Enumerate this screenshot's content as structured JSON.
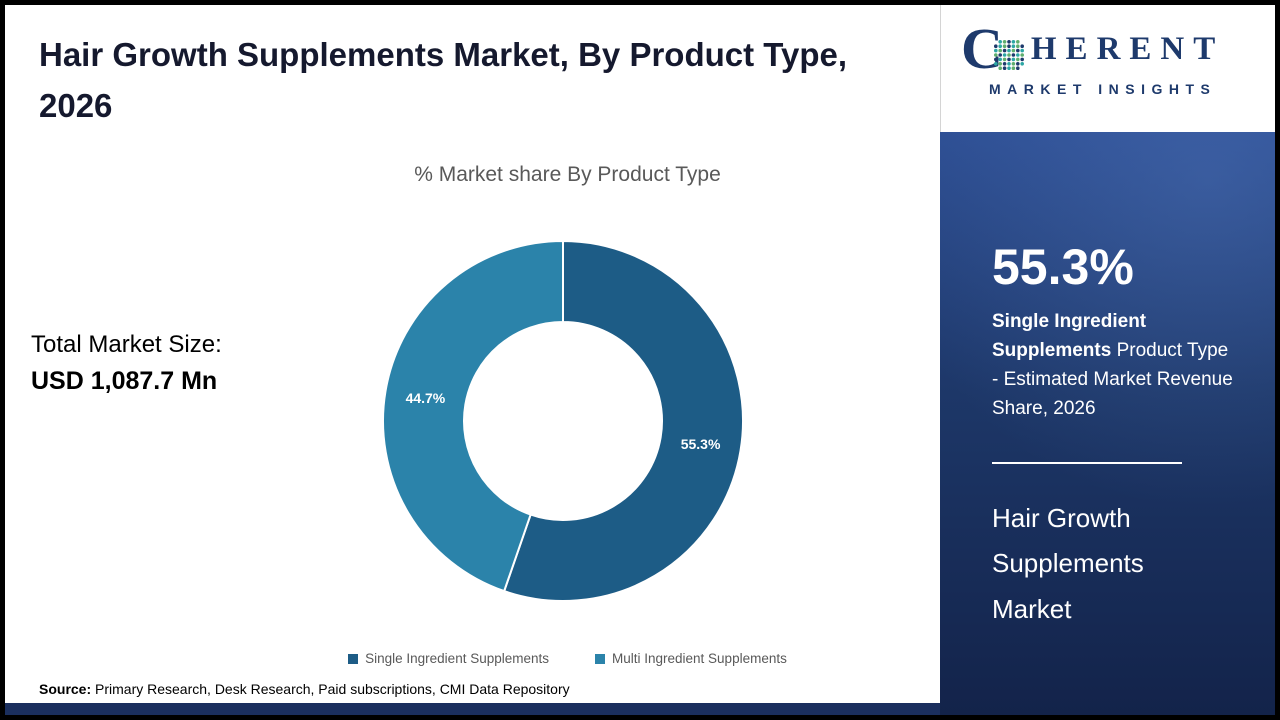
{
  "header": {
    "title": "Hair Growth Supplements Market, By Product Type, 2026"
  },
  "stats": {
    "market_size_label": "Total Market Size:",
    "market_size_value": "USD 1,087.7 Mn"
  },
  "chart_data": {
    "type": "pie",
    "subtype": "donut",
    "title": "% Market share By Product Type",
    "categories": [
      "Single Ingredient Supplements",
      "Multi Ingredient Supplements"
    ],
    "values": [
      55.3,
      44.7
    ],
    "data_labels": [
      "55.3%",
      "44.7%"
    ],
    "colors": [
      "#1d5c86",
      "#2b83aa"
    ],
    "start_angle_deg": 0,
    "direction": "clockwise",
    "inner_radius_ratio": 0.55,
    "legend_position": "bottom"
  },
  "footer": {
    "source_label": "Source:",
    "source_text": " Primary Research, Desk Research, Paid subscriptions, CMI Data Repository"
  },
  "sidebar": {
    "logo_text_c": "C",
    "logo_text_rest": "HERENT",
    "logo_subtext": "MARKET INSIGHTS",
    "logo_brand_color": "#1e3a6c",
    "highlight_value": "55.3%",
    "highlight_bold": "Single Ingredient Supplements",
    "highlight_rest": " Product Type - Estimated Market Revenue Share, 2026",
    "panel_title": "Hair Growth Supplements Market",
    "panel_accent_color": "#1b2f5e"
  }
}
